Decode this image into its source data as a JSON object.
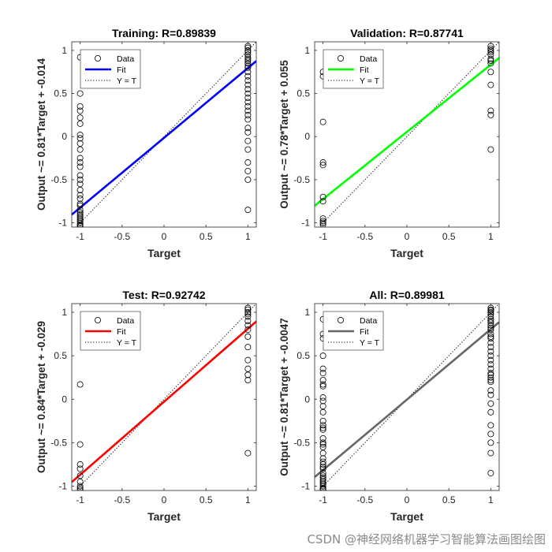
{
  "figure": {
    "watermark": "CSDN @神经网络机器学习智能算法画图绘图"
  },
  "chart_data": [
    {
      "type": "scatter",
      "title": "Training: R=0.89839",
      "xlabel": "Target",
      "ylabel": "Output ~= 0.81*Target + -0.014",
      "xlim": [
        -1.1,
        1.1
      ],
      "ylim": [
        -1.05,
        1.1
      ],
      "xticks": [
        "-1",
        "-0.5",
        "0",
        "0.5",
        "1"
      ],
      "yticks": [
        "-1",
        "-0.5",
        "0",
        "0.5",
        "1"
      ],
      "fit_color": "#0000ff",
      "legend": {
        "position": "top-left",
        "entries": [
          "Data",
          "Fit",
          "Y = T"
        ]
      },
      "fit": {
        "slope": 0.81,
        "intercept": -0.014
      },
      "points": [
        {
          "x": -1,
          "y": [
            0.92,
            0.5,
            0.35,
            0.3,
            0.22,
            0.15,
            0.02,
            -0.02,
            -0.08,
            -0.15,
            -0.25,
            -0.3,
            -0.35,
            -0.45,
            -0.5,
            -0.55,
            -0.62,
            -0.68,
            -0.72,
            -0.78,
            -0.8,
            -0.85,
            -0.88,
            -0.9,
            -0.92,
            -0.94,
            -0.96,
            -0.98,
            -1.0,
            -1.02,
            -1.03,
            -1.04
          ]
        },
        {
          "x": 1,
          "y": [
            1.05,
            1.03,
            1.0,
            0.98,
            0.95,
            0.92,
            0.9,
            0.88,
            0.85,
            0.82,
            0.8,
            0.75,
            0.7,
            0.65,
            0.6,
            0.55,
            0.5,
            0.45,
            0.4,
            0.35,
            0.3,
            0.25,
            0.2,
            0.1,
            0.05,
            -0.05,
            -0.15,
            -0.3,
            -0.4,
            -0.5,
            -0.85
          ]
        }
      ]
    },
    {
      "type": "scatter",
      "title": "Validation: R=0.87741",
      "xlabel": "Target",
      "ylabel": "Output ~= 0.78*Target + 0.055",
      "xlim": [
        -1.1,
        1.1
      ],
      "ylim": [
        -1.05,
        1.1
      ],
      "xticks": [
        "-1",
        "-0.5",
        "0",
        "0.5",
        "1"
      ],
      "yticks": [
        "-1",
        "-0.5",
        "0",
        "0.5",
        "1"
      ],
      "fit_color": "#00ff00",
      "legend": {
        "position": "top-left",
        "entries": [
          "Data",
          "Fit",
          "Y = T"
        ]
      },
      "fit": {
        "slope": 0.78,
        "intercept": 0.055
      },
      "points": [
        {
          "x": -1,
          "y": [
            0.75,
            0.7,
            0.17,
            -0.3,
            -0.33,
            -0.7,
            -0.75,
            -0.95,
            -0.98,
            -1.0,
            -1.02
          ]
        },
        {
          "x": 1,
          "y": [
            1.05,
            1.02,
            1.0,
            0.98,
            0.95,
            0.9,
            0.88,
            0.85,
            0.75,
            0.6,
            0.3,
            0.25,
            -0.15
          ]
        }
      ]
    },
    {
      "type": "scatter",
      "title": "Test: R=0.92742",
      "xlabel": "Target",
      "ylabel": "Output ~= 0.84*Target + -0.029",
      "xlim": [
        -1.1,
        1.1
      ],
      "ylim": [
        -1.05,
        1.1
      ],
      "xticks": [
        "-1",
        "-0.5",
        "0",
        "0.5",
        "1"
      ],
      "yticks": [
        "-1",
        "-0.5",
        "0",
        "0.5",
        "1"
      ],
      "fit_color": "#ff0000",
      "legend": {
        "position": "top-left",
        "entries": [
          "Data",
          "Fit",
          "Y = T"
        ]
      },
      "fit": {
        "slope": 0.84,
        "intercept": -0.029
      },
      "points": [
        {
          "x": -1,
          "y": [
            0.17,
            -0.52,
            -0.75,
            -0.8,
            -0.88,
            -0.95,
            -1.0,
            -1.02,
            -1.04
          ]
        },
        {
          "x": 1,
          "y": [
            1.05,
            1.03,
            1.0,
            0.98,
            0.95,
            0.9,
            0.85,
            0.8,
            0.72,
            0.6,
            0.45,
            0.35,
            0.28,
            0.22,
            -0.62
          ]
        }
      ]
    },
    {
      "type": "scatter",
      "title": "All: R=0.89981",
      "xlabel": "Target",
      "ylabel": "Output ~= 0.81*Target + -0.0047",
      "xlim": [
        -1.1,
        1.1
      ],
      "ylim": [
        -1.05,
        1.1
      ],
      "xticks": [
        "-1",
        "-0.5",
        "0",
        "0.5",
        "1"
      ],
      "yticks": [
        "-1",
        "-0.5",
        "0",
        "0.5",
        "1"
      ],
      "fit_color": "#666666",
      "legend": {
        "position": "top-left",
        "entries": [
          "Data",
          "Fit",
          "Y = T"
        ]
      },
      "fit": {
        "slope": 0.81,
        "intercept": -0.0047
      },
      "points": [
        {
          "x": -1,
          "y": [
            0.92,
            0.75,
            0.7,
            0.5,
            0.35,
            0.3,
            0.22,
            0.17,
            0.15,
            0.02,
            -0.02,
            -0.08,
            -0.15,
            -0.25,
            -0.3,
            -0.33,
            -0.35,
            -0.45,
            -0.5,
            -0.52,
            -0.55,
            -0.62,
            -0.68,
            -0.72,
            -0.75,
            -0.78,
            -0.8,
            -0.85,
            -0.88,
            -0.9,
            -0.92,
            -0.94,
            -0.96,
            -0.98,
            -1.0,
            -1.02,
            -1.03,
            -1.04
          ]
        },
        {
          "x": 1,
          "y": [
            1.05,
            1.03,
            1.02,
            1.0,
            0.98,
            0.95,
            0.92,
            0.9,
            0.88,
            0.85,
            0.82,
            0.8,
            0.75,
            0.72,
            0.7,
            0.65,
            0.6,
            0.55,
            0.5,
            0.45,
            0.4,
            0.35,
            0.3,
            0.28,
            0.25,
            0.22,
            0.2,
            0.1,
            0.05,
            -0.05,
            -0.15,
            -0.3,
            -0.4,
            -0.5,
            -0.62,
            -0.85
          ]
        }
      ]
    }
  ]
}
